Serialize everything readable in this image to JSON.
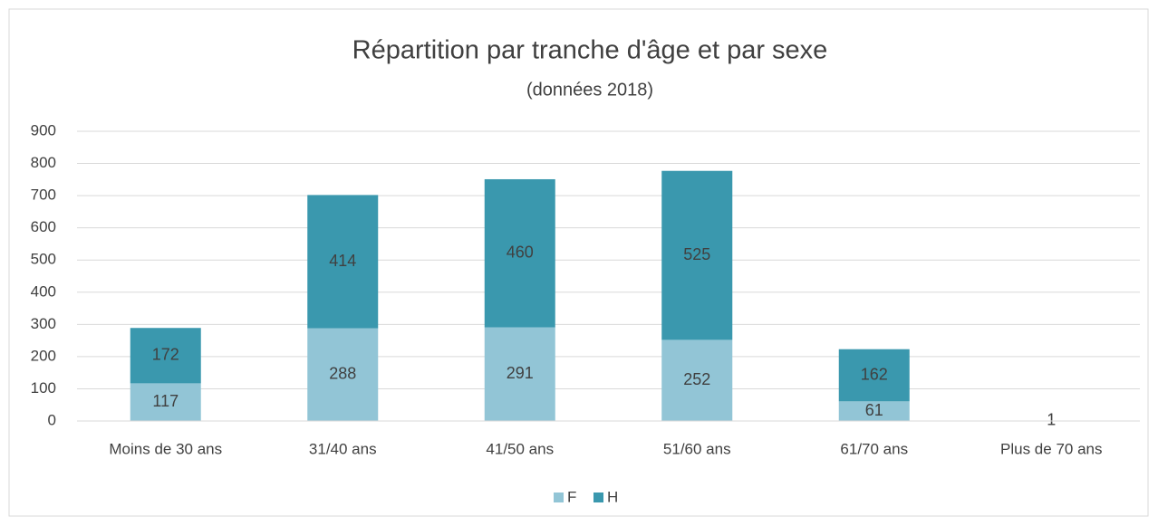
{
  "chart_data": {
    "type": "bar",
    "stacked": true,
    "title": "Répartition par tranche d'âge et par sexe",
    "subtitle": "(données 2018)",
    "categories": [
      "Moins de 30 ans",
      "31/40 ans",
      "41/50 ans",
      "51/60 ans",
      "61/70 ans",
      "Plus de 70 ans"
    ],
    "series": [
      {
        "name": "F",
        "color": "#92c5d6",
        "values": [
          117,
          288,
          291,
          252,
          61,
          null
        ]
      },
      {
        "name": "H",
        "color": "#3a98ae",
        "values": [
          172,
          414,
          460,
          525,
          162,
          1
        ]
      }
    ],
    "ylim": [
      0,
      900
    ],
    "yticks": [
      0,
      100,
      200,
      300,
      400,
      500,
      600,
      700,
      800,
      900
    ],
    "grid": true,
    "legend": "bottom"
  }
}
